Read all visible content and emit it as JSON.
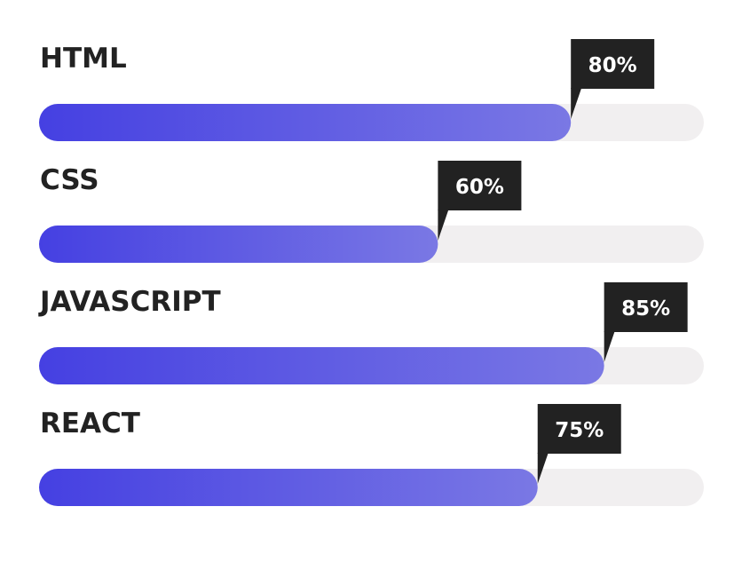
{
  "skills": [
    {
      "name": "HTML",
      "value": 80,
      "label": "80%"
    },
    {
      "name": "CSS",
      "value": 60,
      "label": "60%"
    },
    {
      "name": "JAVASCRIPT",
      "value": 85,
      "label": "85%"
    },
    {
      "name": "REACT",
      "value": 75,
      "label": "75%"
    }
  ]
}
